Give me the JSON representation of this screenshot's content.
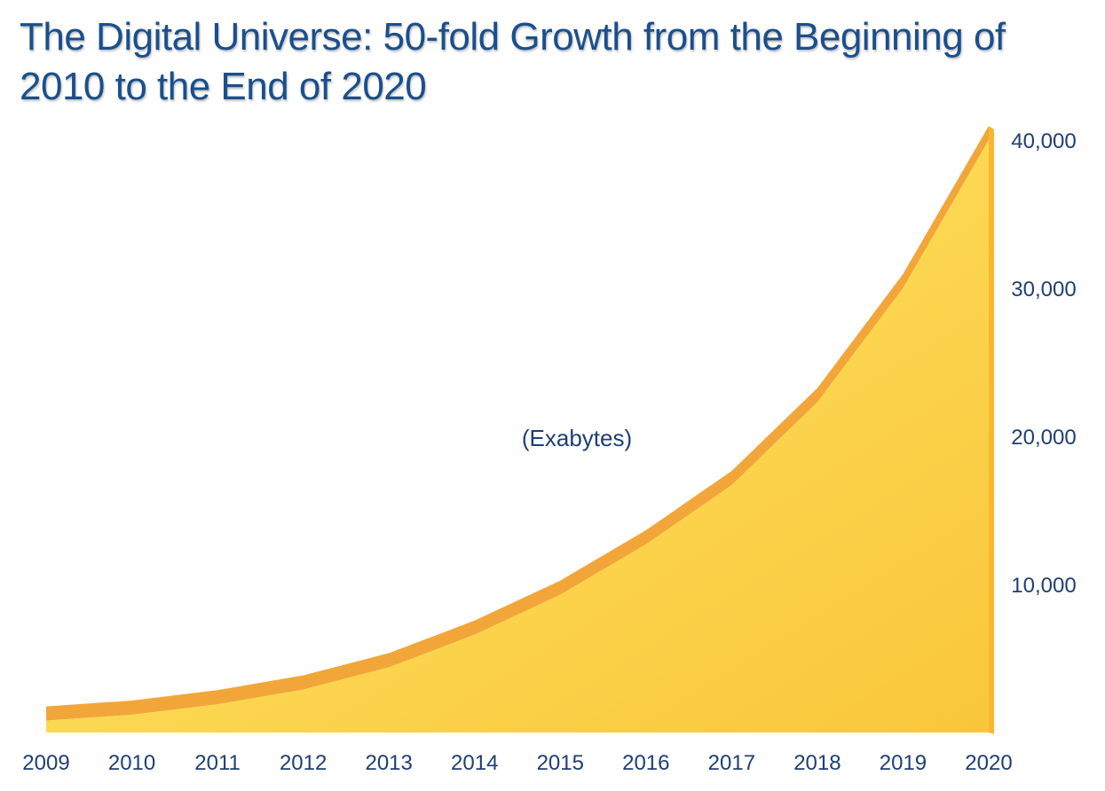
{
  "chart_data": {
    "type": "area",
    "title": "The Digital Universe: 50-fold Growth from the Beginning of 2010 to the End of 2020",
    "unit_label": "(Exabytes)",
    "x": [
      "2009",
      "2010",
      "2011",
      "2012",
      "2013",
      "2014",
      "2015",
      "2016",
      "2017",
      "2018",
      "2019",
      "2020"
    ],
    "values": [
      800,
      1200,
      1900,
      2900,
      4400,
      6600,
      9300,
      12700,
      16700,
      22300,
      30000,
      40000
    ],
    "y_ticks": [
      "10,000",
      "20,000",
      "30,000",
      "40,000"
    ],
    "y_tick_values": [
      10000,
      20000,
      30000,
      40000
    ],
    "ylim": [
      0,
      40000
    ],
    "y_axis_side": "right",
    "grid": false,
    "colors": {
      "fill_light": "#ffe45c",
      "fill_dark": "#f7b830",
      "edge": "#f2a63a",
      "title": "#1a4f8c",
      "text": "#1f3f73"
    }
  }
}
